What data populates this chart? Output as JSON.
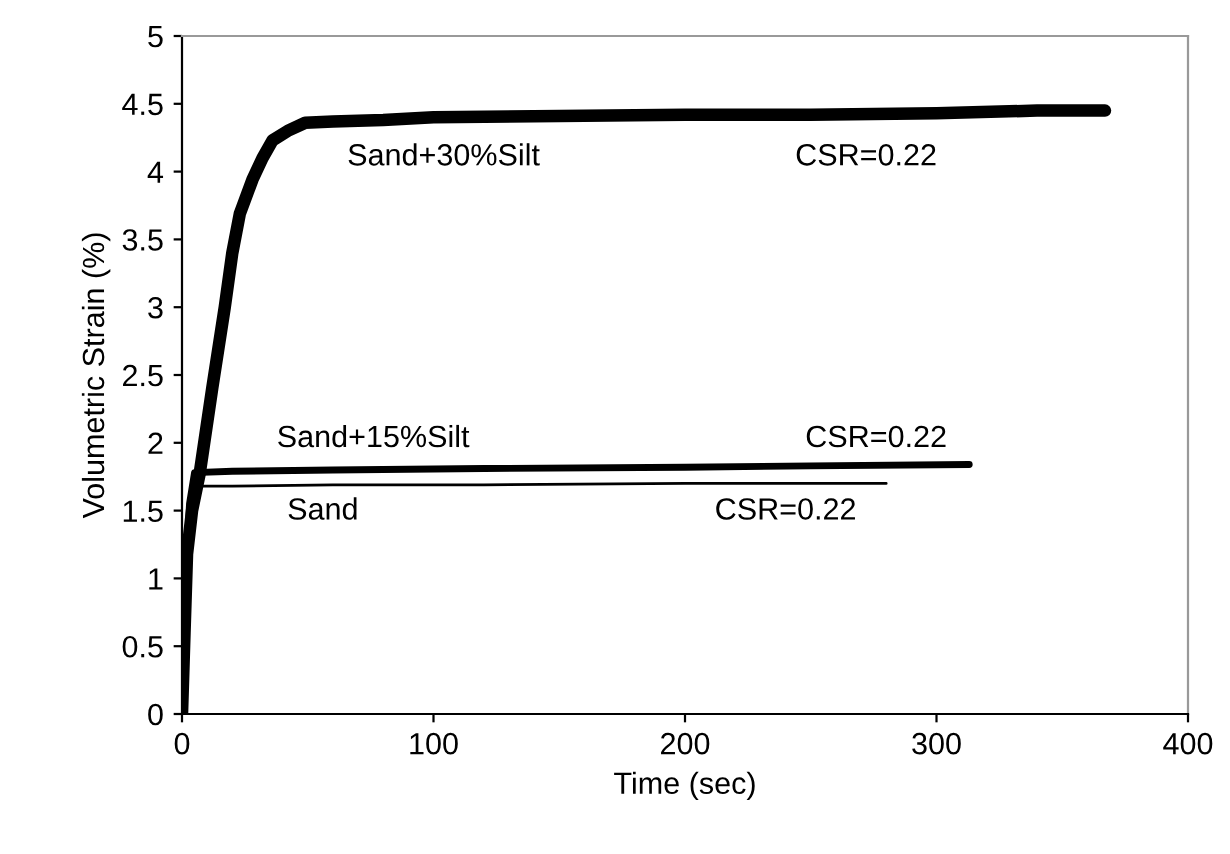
{
  "chart_data": {
    "type": "line",
    "xlabel": "Time (sec)",
    "ylabel": "Volumetric Strain (%)",
    "xlim": [
      0,
      400
    ],
    "ylim": [
      0,
      5
    ],
    "xticks": [
      0,
      100,
      200,
      300,
      400
    ],
    "yticks": [
      0,
      0.5,
      1,
      1.5,
      2,
      2.5,
      3,
      3.5,
      4,
      4.5,
      5
    ],
    "marker": "none",
    "line_style": "solid",
    "series": [
      {
        "name": "Sand+30%Silt",
        "color": "#000000",
        "x": [
          0,
          1,
          2,
          4,
          7,
          12,
          17,
          20,
          23,
          28,
          32,
          36,
          42,
          49,
          60,
          80,
          100,
          150,
          200,
          250,
          300,
          340,
          367
        ],
        "values": [
          0,
          0.6,
          1.18,
          1.5,
          1.77,
          2.4,
          3.0,
          3.4,
          3.69,
          3.94,
          4.1,
          4.23,
          4.3,
          4.36,
          4.37,
          4.38,
          4.4,
          4.41,
          4.42,
          4.42,
          4.43,
          4.45,
          4.45
        ]
      },
      {
        "name": "Sand+15%Silt",
        "color": "#000000",
        "x": [
          0,
          1,
          2,
          3,
          5,
          20,
          60,
          120,
          200,
          250,
          313
        ],
        "values": [
          0,
          0.7,
          1.2,
          1.55,
          1.78,
          1.79,
          1.8,
          1.81,
          1.82,
          1.83,
          1.84
        ]
      },
      {
        "name": "Sand",
        "color": "#000000",
        "x": [
          0,
          1,
          2,
          3,
          5,
          20,
          60,
          120,
          200,
          280
        ],
        "values": [
          0,
          0.7,
          1.2,
          1.5,
          1.68,
          1.68,
          1.69,
          1.69,
          1.7,
          1.7
        ]
      }
    ],
    "annotations": [
      "CSR=0.22",
      "CSR=0.22",
      "CSR=0.22"
    ]
  }
}
